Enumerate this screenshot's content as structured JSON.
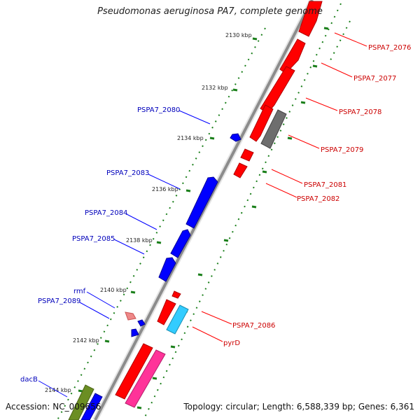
{
  "title": "Pseudomonas aeruginosa PA7, complete genome",
  "footer": {
    "accession": "Accession: NC_009656",
    "topology": "Topology: circular; Length: 6,588,339 bp; Genes: 6,361"
  },
  "colors": {
    "backbone": "#8c8c8c",
    "tick": "#1a7f1a",
    "forward_label": "#cc0000",
    "reverse_label": "#0000bb"
  },
  "ticks": [
    "2130 kbp",
    "2132 kbp",
    "2134 kbp",
    "2136 kbp",
    "2138 kbp",
    "2140 kbp",
    "2142 kbp",
    "2144 kbp"
  ],
  "labels": {
    "right": [
      "PSPA7_2076",
      "PSPA7_2077",
      "PSPA7_2078",
      "PSPA7_2079",
      "PSPA7_2081",
      "PSPA7_2082",
      "PSPA7_2086",
      "pyrD"
    ],
    "left": [
      "PSPA7_2080",
      "PSPA7_2083",
      "PSPA7_2084",
      "PSPA7_2085",
      "rmf",
      "PSPA7_2089",
      "dacB"
    ]
  }
}
